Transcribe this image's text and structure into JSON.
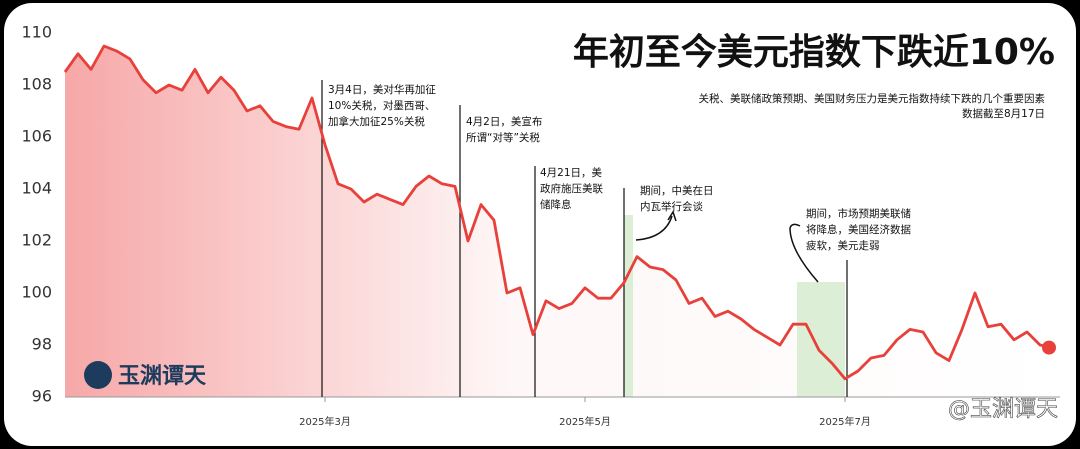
{
  "chart_data": {
    "type": "line",
    "title": "年初至今美元指数下跌近10%",
    "subtitle": [
      "关税、美联储政策预期、美国财务压力是美元指数持续下跌的几个重要因素",
      "数据截至8月17日"
    ],
    "brand": [
      "玉渊谭天",
      "@玉渊谭天"
    ],
    "categories": [
      null,
      null,
      null,
      null,
      null,
      null,
      null,
      null,
      null,
      null,
      null,
      null,
      null,
      null,
      null,
      null,
      null,
      null,
      null,
      null,
      "2025年3月",
      null,
      null,
      null,
      null,
      null,
      null,
      null,
      null,
      null,
      null,
      null,
      null,
      null,
      null,
      null,
      null,
      null,
      null,
      null,
      "2025年5月",
      null,
      null,
      null,
      null,
      null,
      null,
      null,
      null,
      null,
      null,
      null,
      null,
      null,
      null,
      null,
      null,
      null,
      null,
      null,
      "2025年7月",
      null,
      null,
      null,
      null,
      null,
      null,
      null,
      null,
      null,
      null,
      null,
      null,
      null,
      null,
      null,
      null
    ],
    "series": [
      {
        "name": "美元指数",
        "color": "#e8403a",
        "values": [
          108.5,
          109.2,
          108.6,
          109.5,
          109.3,
          109.0,
          108.2,
          107.7,
          108.0,
          107.8,
          108.6,
          107.7,
          108.3,
          107.8,
          107.0,
          107.2,
          106.6,
          106.4,
          106.3,
          107.5,
          105.7,
          104.2,
          104.0,
          103.5,
          103.8,
          103.6,
          103.4,
          104.1,
          104.5,
          104.2,
          104.1,
          102.0,
          103.4,
          102.8,
          100.0,
          100.2,
          98.4,
          99.7,
          99.4,
          99.6,
          100.2,
          99.8,
          99.8,
          100.4,
          101.4,
          101.0,
          100.9,
          100.5,
          99.6,
          99.8,
          99.1,
          99.3,
          99.0,
          98.6,
          98.3,
          98.0,
          98.8,
          98.8,
          97.8,
          97.3,
          96.7,
          97.0,
          97.5,
          97.6,
          98.2,
          98.6,
          98.5,
          97.7,
          97.4,
          98.6,
          100.0,
          98.7,
          98.8,
          98.2,
          98.5,
          98.0,
          97.9
        ]
      }
    ],
    "ylim": [
      96,
      110
    ],
    "yticks": [
      96,
      98,
      100,
      102,
      104,
      106,
      108,
      110
    ],
    "grid": false,
    "annotations": [
      [
        "3月4日，美对华再加征",
        "10%关税，对墨西哥、",
        "加拿大加征25%关税"
      ],
      [
        "4月2日，美宣布",
        "所谓“对等”关税"
      ],
      [
        "4月21日，美",
        "政府施压美联",
        "储降息"
      ],
      [
        "期间，中美在日",
        "内瓦举行会谈"
      ],
      [
        "期间，市场预期美联储",
        "将降息，美国经济数据",
        "疲软，美元走弱"
      ]
    ]
  }
}
